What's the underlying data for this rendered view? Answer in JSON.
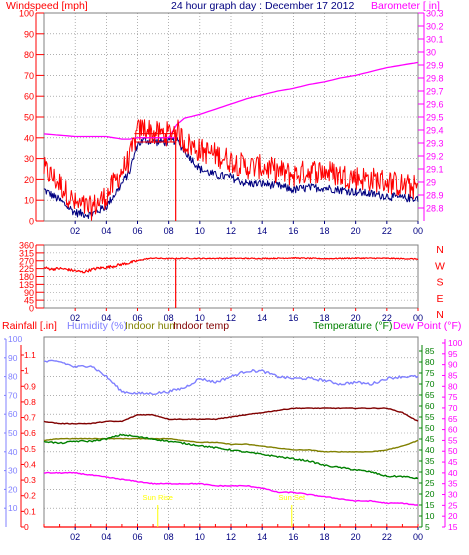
{
  "header": {
    "wind_label": "Windspeed [mph]",
    "title": "24 hour graph day : December 17 2012",
    "baro_label": "Barometer [ in]"
  },
  "bottom_header": {
    "rain": "Rainfall [.in]",
    "humidity": "Humidity (%)",
    "indoor_hum": "Indoor hum",
    "indoor_temp": "Indoor temp",
    "temperature": "Temperature (°F)",
    "dewpoint": "Dew Point (°F)"
  },
  "colors": {
    "frame": "#808080",
    "grid": "#808080",
    "wind": "#ff0000",
    "wind_dark": "#c00000",
    "gust": "#000080",
    "barometer": "#ff00ff",
    "direction": "#ff0000",
    "rain_axis": "#ff0000",
    "humidity": "#8080ff",
    "indoor_hum": "#808000",
    "indoor_temp": "#800000",
    "temperature": "#008000",
    "dewpoint": "#ff00ff",
    "sun": "#ffff00",
    "title": "#000080"
  },
  "chart_data": [
    {
      "type": "line",
      "name": "wind",
      "x_ticks": [
        "02",
        "04",
        "06",
        "08",
        "10",
        "12",
        "14",
        "16",
        "18",
        "20",
        "22",
        "00"
      ],
      "ylim": [
        0,
        100
      ],
      "y_ticks": [
        0,
        10,
        20,
        30,
        40,
        50,
        60,
        70,
        80,
        90,
        100
      ],
      "y2lim": [
        28.7,
        30.3
      ],
      "y2_ticks": [
        "28.8",
        "28.9",
        "29",
        "29.1",
        "29.2",
        "29.3",
        "29.4",
        "29.5",
        "29.6",
        "29.7",
        "29.8",
        "29.9",
        "30",
        "30.1",
        "30.2",
        "30.3"
      ],
      "hours": [
        0,
        1,
        2,
        3,
        4,
        5,
        5.5,
        6,
        6.5,
        7,
        7.5,
        8,
        8.5,
        9,
        10,
        11,
        12,
        13,
        14,
        15,
        16,
        17,
        18,
        19,
        20,
        21,
        22,
        23,
        24
      ],
      "series": [
        {
          "key": "wind",
          "values": [
            25,
            18,
            8,
            6,
            12,
            24,
            30,
            43,
            45,
            42,
            42,
            42,
            44,
            38,
            34,
            32,
            29,
            26,
            26,
            24,
            22,
            24,
            24,
            22,
            21,
            20,
            19,
            17,
            16
          ]
        },
        {
          "key": "gust",
          "values": [
            15,
            10,
            4,
            3,
            7,
            18,
            24,
            37,
            39,
            38,
            38,
            38,
            39,
            34,
            25,
            22,
            21,
            18,
            18,
            17,
            15,
            16,
            16,
            15,
            14,
            13,
            12,
            11,
            11
          ]
        },
        {
          "key": "barometer",
          "values": [
            29.37,
            29.36,
            29.35,
            29.35,
            29.35,
            29.33,
            29.33,
            29.34,
            29.34,
            29.34,
            29.34,
            29.34,
            29.44,
            29.49,
            29.52,
            29.56,
            29.6,
            29.64,
            29.67,
            29.7,
            29.72,
            29.75,
            29.77,
            29.8,
            29.82,
            29.85,
            29.88,
            29.9,
            29.92
          ]
        }
      ]
    },
    {
      "type": "line",
      "name": "wind-direction",
      "x_ticks": [
        "02",
        "04",
        "06",
        "08",
        "10",
        "12",
        "14",
        "16",
        "18",
        "20",
        "22",
        "00"
      ],
      "ylim": [
        0,
        360
      ],
      "y_ticks": [
        0,
        45,
        90,
        135,
        180,
        225,
        270,
        315,
        360
      ],
      "y2_labels": [
        "N",
        "W",
        "S",
        "E",
        "N"
      ],
      "hours": [
        0,
        0.5,
        1,
        1.5,
        2,
        2.5,
        3,
        3.5,
        4,
        4.5,
        5,
        5.5,
        6,
        6.5,
        7,
        8,
        9,
        10,
        12,
        14,
        16,
        18,
        20,
        22,
        24
      ],
      "values": [
        230,
        222,
        226,
        220,
        212,
        205,
        218,
        228,
        232,
        240,
        250,
        258,
        270,
        280,
        285,
        282,
        284,
        283,
        284,
        283,
        286,
        282,
        285,
        284,
        280
      ]
    },
    {
      "type": "line",
      "name": "rain-humidity-temperature",
      "x_ticks": [
        "02",
        "04",
        "06",
        "08",
        "10",
        "12",
        "14",
        "16",
        "18",
        "20",
        "22",
        "00"
      ],
      "rain_ticks": [
        "0",
        "0.1",
        "0.2",
        "0.3",
        "0.4",
        "0.5",
        "0.6",
        "0.7",
        "0.8",
        "0.9",
        "1",
        "1.1"
      ],
      "humidity_ticks": [
        10,
        20,
        30,
        40,
        50,
        60,
        70,
        80,
        90,
        100
      ],
      "temp_ticks": [
        5,
        10,
        15,
        20,
        25,
        30,
        35,
        40,
        45,
        50,
        55,
        60,
        65,
        70,
        75,
        80,
        85
      ],
      "dew_ticks": [
        15,
        20,
        25,
        30,
        35,
        40,
        45,
        50,
        55,
        60,
        65,
        70,
        75,
        80,
        85,
        90,
        95,
        100
      ],
      "sun_events": [
        "Sun Rise",
        "Sun Set"
      ],
      "hours": [
        0,
        1,
        2,
        3,
        4,
        5,
        6,
        7,
        8,
        9,
        10,
        11,
        12,
        13,
        14,
        15,
        16,
        17,
        18,
        19,
        20,
        21,
        22,
        23,
        24
      ],
      "series": [
        {
          "key": "humidity",
          "unit": "%",
          "values": [
            88,
            88,
            85,
            86,
            80,
            72,
            71,
            71,
            72,
            74,
            79,
            77,
            80,
            83,
            83,
            80,
            79,
            79,
            78,
            76,
            77,
            76,
            79,
            80,
            80
          ]
        },
        {
          "key": "indoor_hum",
          "unit": "%",
          "values": [
            46,
            47,
            47,
            47,
            47,
            47,
            47,
            47,
            47,
            46,
            45,
            45,
            44,
            44,
            43,
            42,
            41,
            41,
            40,
            40,
            40,
            40,
            41,
            43,
            46
          ]
        },
        {
          "key": "indoor_temp",
          "unit": "°F",
          "values": [
            53,
            52,
            52,
            52,
            53,
            53,
            56,
            56,
            54,
            54,
            54,
            54,
            55,
            56,
            57,
            58,
            59,
            59,
            59,
            59,
            59,
            59,
            59,
            57,
            53
          ]
        },
        {
          "key": "temperature",
          "unit": "°F",
          "values": [
            44,
            43,
            44,
            44,
            45,
            47,
            46,
            45,
            44,
            43,
            42,
            41,
            40,
            39,
            38,
            37,
            36,
            35,
            33,
            32,
            31,
            30,
            28,
            28,
            27
          ]
        },
        {
          "key": "dewpoint",
          "unit": "°F",
          "values": [
            40,
            40,
            40,
            39,
            38,
            37,
            36,
            35,
            35,
            35,
            35,
            34,
            34,
            34,
            33,
            31,
            31,
            30,
            29,
            28,
            27,
            27,
            26,
            26,
            25
          ]
        }
      ]
    }
  ]
}
